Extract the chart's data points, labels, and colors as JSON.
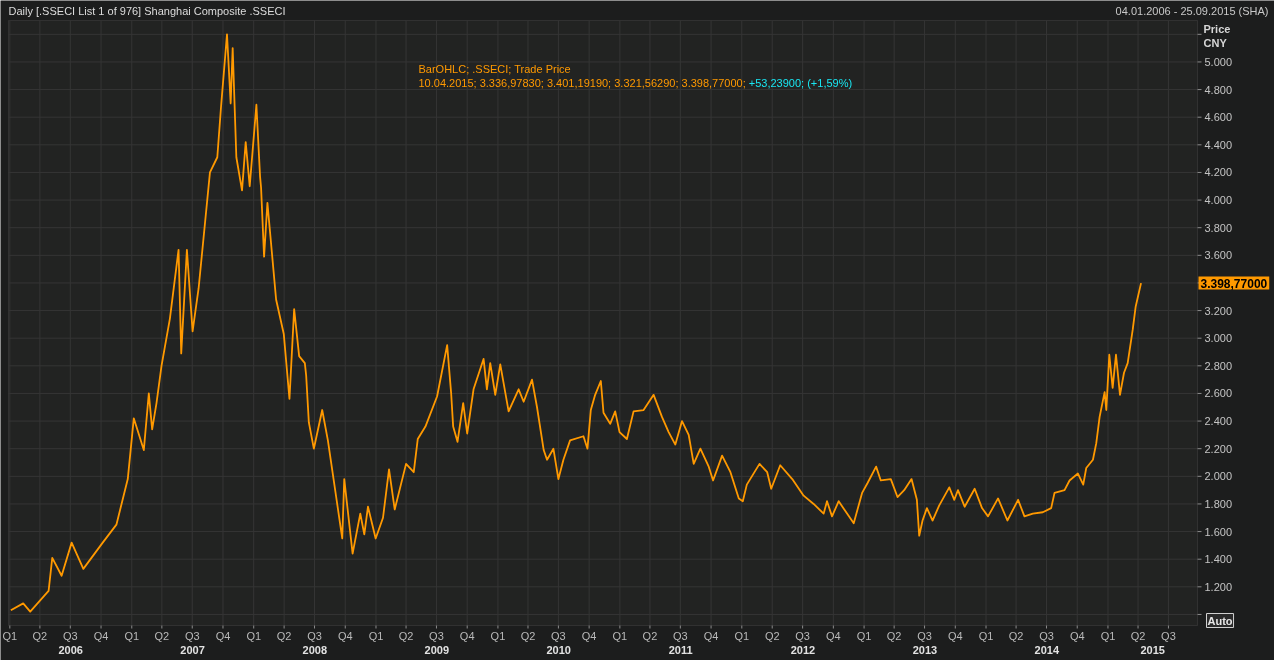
{
  "chart_data": {
    "type": "line",
    "title": "Daily [.SSECI List 1 of 976] Shanghai Composite .SSECI",
    "subtitle": "04.01.2006 - 25.09.2015 (SHA)",
    "ylabel": "Price CNY",
    "annotations": [
      "BarOHLC; .SSECI; Trade Price",
      "10.04.2015; 3.336,97830; 3.401,19190; 3.321,56290; 3.398,77000;",
      "+53,23900; (+1,59%)",
      "Auto",
      "3.398,77000"
    ],
    "x": [
      "2006-01-04",
      "2006-02-10",
      "2006-03-03",
      "2006-04-27",
      "2006-05-08",
      "2006-06-05",
      "2006-07-05",
      "2006-08-09",
      "2006-10-06",
      "2006-11-16",
      "2006-12-20",
      "2007-01-07",
      "2007-02-06",
      "2007-02-21",
      "2007-03-03",
      "2007-03-16",
      "2007-03-31",
      "2007-04-25",
      "2007-05-21",
      "2007-05-29",
      "2007-06-15",
      "2007-07-02",
      "2007-07-20",
      "2007-08-23",
      "2007-09-14",
      "2007-09-25",
      "2007-10-13",
      "2007-10-24",
      "2007-10-30",
      "2007-11-10",
      "2007-11-27",
      "2007-12-08",
      "2007-12-20",
      "2008-01-09",
      "2008-01-20",
      "2008-01-23",
      "2008-02-01",
      "2008-02-11",
      "2008-03-08",
      "2008-03-31",
      "2008-04-17",
      "2008-05-01",
      "2008-05-16",
      "2008-06-02",
      "2008-06-06",
      "2008-06-14",
      "2008-06-29",
      "2008-07-24",
      "2008-08-10",
      "2008-08-27",
      "2008-09-22",
      "2008-09-28",
      "2008-10-23",
      "2008-11-15",
      "2008-11-27",
      "2008-12-08",
      "2008-12-31",
      "2009-01-22",
      "2009-02-09",
      "2009-02-26",
      "2009-04-01",
      "2009-04-24",
      "2009-05-06",
      "2009-05-29",
      "2009-07-03",
      "2009-08-02",
      "2009-08-14",
      "2009-08-20",
      "2009-09-02",
      "2009-09-19",
      "2009-10-01",
      "2009-10-20",
      "2009-11-19",
      "2009-11-29",
      "2009-12-09",
      "2009-12-24",
      "2010-01-08",
      "2010-02-02",
      "2010-03-04",
      "2010-03-19",
      "2010-04-13",
      "2010-04-28",
      "2010-05-18",
      "2010-05-28",
      "2010-06-16",
      "2010-07-01",
      "2010-07-16",
      "2010-08-05",
      "2010-09-14",
      "2010-09-26",
      "2010-10-06",
      "2010-10-19",
      "2010-11-05",
      "2010-11-13",
      "2010-12-03",
      "2010-12-18",
      "2010-12-31",
      "2011-01-22",
      "2011-02-11",
      "2011-03-13",
      "2011-04-12",
      "2011-05-07",
      "2011-05-27",
      "2011-06-16",
      "2011-07-06",
      "2011-07-26",
      "2011-08-10",
      "2011-08-30",
      "2011-09-24",
      "2011-10-07",
      "2011-11-03",
      "2011-11-28",
      "2011-12-23",
      "2012-01-04",
      "2012-01-16",
      "2012-02-23",
      "2012-03-17",
      "2012-03-29",
      "2012-04-25",
      "2012-05-31",
      "2012-07-04",
      "2012-08-03",
      "2012-09-02",
      "2012-09-12",
      "2012-09-27",
      "2012-10-17",
      "2012-11-11",
      "2012-12-01",
      "2012-12-26",
      "2013-01-11",
      "2013-02-06",
      "2013-02-20",
      "2013-03-22",
      "2013-04-11",
      "2013-05-01",
      "2013-05-23",
      "2013-06-08",
      "2013-06-15",
      "2013-06-25",
      "2013-07-08",
      "2013-07-25",
      "2013-08-14",
      "2013-09-13",
      "2013-09-28",
      "2013-10-09",
      "2013-10-29",
      "2013-11-28",
      "2013-12-20",
      "2014-01-07",
      "2014-02-06",
      "2014-03-06",
      "2014-04-07",
      "2014-04-26",
      "2014-05-21",
      "2014-06-20",
      "2014-07-15",
      "2014-07-25",
      "2014-08-24",
      "2014-09-08",
      "2014-10-03",
      "2014-10-19",
      "2014-10-28",
      "2014-11-17",
      "2014-11-27",
      "2014-12-07",
      "2014-12-22",
      "2014-12-27",
      "2015-01-05",
      "2015-01-15",
      "2015-01-25",
      "2015-02-06",
      "2015-02-18",
      "2015-03-01",
      "2015-03-16",
      "2015-03-25",
      "2015-04-10"
    ],
    "series": [
      {
        "color": "#ff9900",
        "values": [
          1030,
          1080,
          1020,
          1170,
          1410,
          1280,
          1520,
          1330,
          1520,
          1650,
          1980,
          2420,
          2190,
          2600,
          2340,
          2530,
          2800,
          3140,
          3640,
          2890,
          3640,
          3050,
          3360,
          4200,
          4310,
          4670,
          5200,
          4700,
          5100,
          4310,
          4070,
          4420,
          4100,
          4690,
          4170,
          4090,
          3590,
          3980,
          3280,
          3030,
          2560,
          3210,
          2870,
          2820,
          2730,
          2390,
          2200,
          2480,
          2260,
          1980,
          1550,
          1980,
          1440,
          1730,
          1580,
          1780,
          1550,
          1700,
          2050,
          1760,
          2090,
          2030,
          2270,
          2360,
          2580,
          2950,
          2600,
          2360,
          2250,
          2530,
          2310,
          2630,
          2850,
          2630,
          2820,
          2590,
          2810,
          2470,
          2630,
          2540,
          2700,
          2500,
          2190,
          2120,
          2200,
          1980,
          2120,
          2260,
          2290,
          2200,
          2480,
          2590,
          2690,
          2460,
          2380,
          2470,
          2320,
          2270,
          2470,
          2480,
          2590,
          2430,
          2320,
          2230,
          2400,
          2300,
          2090,
          2200,
          2070,
          1970,
          2150,
          2030,
          1840,
          1820,
          1940,
          2090,
          2030,
          1910,
          2080,
          1980,
          1860,
          1800,
          1730,
          1820,
          1710,
          1820,
          1730,
          1660,
          1880,
          1950,
          2070,
          1970,
          1980,
          1850,
          1900,
          1980,
          1830,
          1570,
          1680,
          1770,
          1680,
          1790,
          1920,
          1830,
          1900,
          1780,
          1910,
          1770,
          1710,
          1840,
          1680,
          1830,
          1710,
          1730,
          1740,
          1770,
          1880,
          1900,
          1970,
          2020,
          1940,
          2060,
          2120,
          2240,
          2430,
          2610,
          2480,
          2880,
          2640,
          2880,
          2590,
          2750,
          2820,
          3060,
          3230,
          3398.77
        ]
      }
    ],
    "xlim": [
      "2005-12-28",
      "2015-09-26"
    ],
    "xticks": [
      {
        "value": "2006-01-01",
        "label": "Q1"
      },
      {
        "value": "2006-04-01",
        "label": "Q2"
      },
      {
        "value": "2006-07-01",
        "label": "Q3"
      },
      {
        "value": "2006-10-01",
        "label": "Q4"
      },
      {
        "value": "2007-01-01",
        "label": "Q1"
      },
      {
        "value": "2007-04-01",
        "label": "Q2"
      },
      {
        "value": "2007-07-01",
        "label": "Q3"
      },
      {
        "value": "2007-10-01",
        "label": "Q4"
      },
      {
        "value": "2008-01-01",
        "label": "Q1"
      },
      {
        "value": "2008-04-01",
        "label": "Q2"
      },
      {
        "value": "2008-07-01",
        "label": "Q3"
      },
      {
        "value": "2008-10-01",
        "label": "Q4"
      },
      {
        "value": "2009-01-01",
        "label": "Q1"
      },
      {
        "value": "2009-04-01",
        "label": "Q2"
      },
      {
        "value": "2009-07-01",
        "label": "Q3"
      },
      {
        "value": "2009-10-01",
        "label": "Q4"
      },
      {
        "value": "2010-01-01",
        "label": "Q1"
      },
      {
        "value": "2010-04-01",
        "label": "Q2"
      },
      {
        "value": "2010-07-01",
        "label": "Q3"
      },
      {
        "value": "2010-10-01",
        "label": "Q4"
      },
      {
        "value": "2011-01-01",
        "label": "Q1"
      },
      {
        "value": "2011-04-01",
        "label": "Q2"
      },
      {
        "value": "2011-07-01",
        "label": "Q3"
      },
      {
        "value": "2011-10-01",
        "label": "Q4"
      },
      {
        "value": "2012-01-01",
        "label": "Q1"
      },
      {
        "value": "2012-04-01",
        "label": "Q2"
      },
      {
        "value": "2012-07-01",
        "label": "Q3"
      },
      {
        "value": "2012-10-01",
        "label": "Q4"
      },
      {
        "value": "2013-01-01",
        "label": "Q1"
      },
      {
        "value": "2013-04-01",
        "label": "Q2"
      },
      {
        "value": "2013-07-01",
        "label": "Q3"
      },
      {
        "value": "2013-10-01",
        "label": "Q4"
      },
      {
        "value": "2014-01-01",
        "label": "Q1"
      },
      {
        "value": "2014-04-01",
        "label": "Q2"
      },
      {
        "value": "2014-07-01",
        "label": "Q3"
      },
      {
        "value": "2014-10-01",
        "label": "Q4"
      },
      {
        "value": "2015-01-01",
        "label": "Q1"
      },
      {
        "value": "2015-04-01",
        "label": "Q2"
      },
      {
        "value": "2015-07-01",
        "label": "Q3"
      }
    ],
    "x2lim": [
      "2005-12-28",
      "2015-09-26"
    ],
    "x2ticks": [
      {
        "value": "2006-07-02",
        "label": "2006"
      },
      {
        "value": "2007-07-02",
        "label": "2007"
      },
      {
        "value": "2008-07-02",
        "label": "2008"
      },
      {
        "value": "2009-07-02",
        "label": "2009"
      },
      {
        "value": "2010-07-02",
        "label": "2010"
      },
      {
        "value": "2011-07-02",
        "label": "2011"
      },
      {
        "value": "2012-07-02",
        "label": "2012"
      },
      {
        "value": "2013-07-02",
        "label": "2013"
      },
      {
        "value": "2014-07-02",
        "label": "2014"
      },
      {
        "value": "2015-05-15",
        "label": "2015"
      }
    ],
    "ylim": [
      920,
      5300
    ],
    "yticks": [
      {
        "value": 1000,
        "label": null
      },
      {
        "value": 1200,
        "label": "1.200"
      },
      {
        "value": 1400,
        "label": "1.400"
      },
      {
        "value": 1600,
        "label": "1.600"
      },
      {
        "value": 1800,
        "label": "1.800"
      },
      {
        "value": 2000,
        "label": "2.000"
      },
      {
        "value": 2200,
        "label": "2.200"
      },
      {
        "value": 2400,
        "label": "2.400"
      },
      {
        "value": 2600,
        "label": "2.600"
      },
      {
        "value": 2800,
        "label": "2.800"
      },
      {
        "value": 3000,
        "label": "3.000"
      },
      {
        "value": 3200,
        "label": "3.200"
      },
      {
        "value": 3400,
        "label": null
      },
      {
        "value": 3600,
        "label": "3.600"
      },
      {
        "value": 3800,
        "label": "3.800"
      },
      {
        "value": 4000,
        "label": "4.000"
      },
      {
        "value": 4200,
        "label": "4.200"
      },
      {
        "value": 4400,
        "label": "4.400"
      },
      {
        "value": 4600,
        "label": "4.600"
      },
      {
        "value": 4800,
        "label": "4.800"
      },
      {
        "value": 5000,
        "label": "5.000"
      },
      {
        "value": 5200,
        "label": null
      }
    ],
    "grid": true,
    "line_style": "solid"
  }
}
